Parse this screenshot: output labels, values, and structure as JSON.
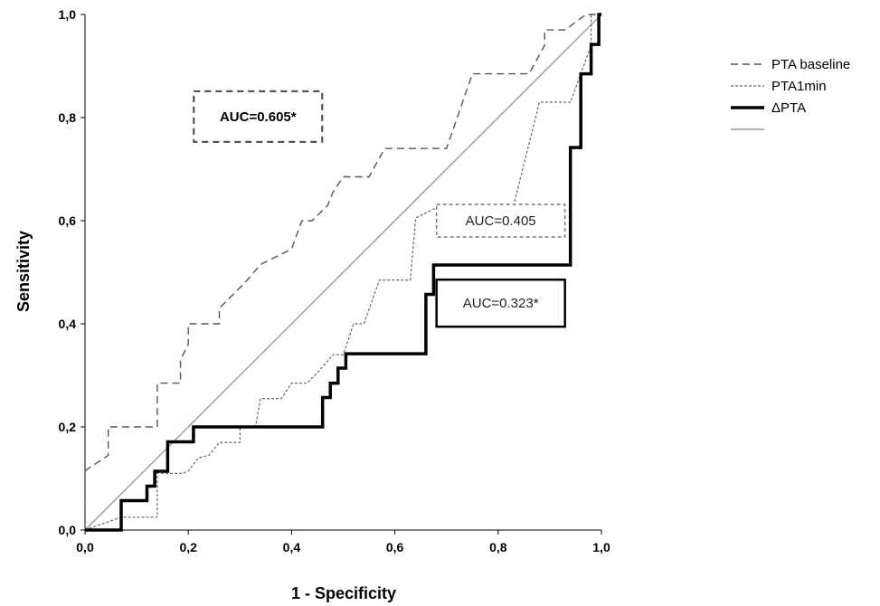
{
  "chart_data": {
    "type": "line",
    "title": "",
    "xlabel": "1 - Specificity",
    "ylabel": "Sensitivity",
    "xlim": [
      0,
      1
    ],
    "ylim": [
      0,
      1
    ],
    "x_ticks": [
      "0,0",
      "0,2",
      "0,4",
      "0,6",
      "0,8",
      "1,0"
    ],
    "y_ticks": [
      "0,0",
      "0,2",
      "0,4",
      "0,6",
      "0,8",
      "1,0"
    ],
    "grid": false,
    "legend_position": "top-right",
    "series": [
      {
        "name": "PTA baseline",
        "style": "dashed",
        "color": "#555555",
        "points": [
          [
            0,
            0
          ],
          [
            0,
            0.115
          ],
          [
            0.045,
            0.145
          ],
          [
            0.045,
            0.2
          ],
          [
            0.09,
            0.2
          ],
          [
            0.14,
            0.2
          ],
          [
            0.14,
            0.285
          ],
          [
            0.185,
            0.285
          ],
          [
            0.185,
            0.33
          ],
          [
            0.2,
            0.36
          ],
          [
            0.2,
            0.4
          ],
          [
            0.26,
            0.4
          ],
          [
            0.26,
            0.43
          ],
          [
            0.29,
            0.46
          ],
          [
            0.31,
            0.48
          ],
          [
            0.34,
            0.515
          ],
          [
            0.37,
            0.53
          ],
          [
            0.4,
            0.545
          ],
          [
            0.42,
            0.6
          ],
          [
            0.44,
            0.6
          ],
          [
            0.47,
            0.63
          ],
          [
            0.48,
            0.655
          ],
          [
            0.5,
            0.685
          ],
          [
            0.55,
            0.685
          ],
          [
            0.58,
            0.74
          ],
          [
            0.7,
            0.74
          ],
          [
            0.75,
            0.885
          ],
          [
            0.86,
            0.885
          ],
          [
            0.89,
            0.94
          ],
          [
            0.89,
            0.97
          ],
          [
            0.93,
            0.97
          ],
          [
            0.97,
            1.0
          ],
          [
            1.0,
            1.0
          ]
        ]
      },
      {
        "name": "PTA1min",
        "style": "dotted",
        "color": "#666666",
        "points": [
          [
            0,
            0
          ],
          [
            0.07,
            0.025
          ],
          [
            0.14,
            0.025
          ],
          [
            0.14,
            0.11
          ],
          [
            0.19,
            0.11
          ],
          [
            0.2,
            0.115
          ],
          [
            0.22,
            0.14
          ],
          [
            0.24,
            0.145
          ],
          [
            0.26,
            0.17
          ],
          [
            0.3,
            0.17
          ],
          [
            0.3,
            0.2
          ],
          [
            0.33,
            0.2
          ],
          [
            0.34,
            0.255
          ],
          [
            0.38,
            0.255
          ],
          [
            0.4,
            0.285
          ],
          [
            0.43,
            0.285
          ],
          [
            0.45,
            0.305
          ],
          [
            0.48,
            0.34
          ],
          [
            0.5,
            0.34
          ],
          [
            0.52,
            0.4
          ],
          [
            0.54,
            0.4
          ],
          [
            0.57,
            0.485
          ],
          [
            0.63,
            0.485
          ],
          [
            0.64,
            0.6
          ],
          [
            0.64,
            0.605
          ],
          [
            0.69,
            0.63
          ],
          [
            0.83,
            0.63
          ],
          [
            0.88,
            0.83
          ],
          [
            0.94,
            0.83
          ],
          [
            0.98,
            0.94
          ],
          [
            0.98,
            1.0
          ],
          [
            1.0,
            1.0
          ]
        ]
      },
      {
        "name": "ΔPTA",
        "style": "solid-thick",
        "color": "#000000",
        "points": [
          [
            0,
            0
          ],
          [
            0.07,
            0
          ],
          [
            0.07,
            0.057
          ],
          [
            0.12,
            0.057
          ],
          [
            0.12,
            0.085
          ],
          [
            0.135,
            0.085
          ],
          [
            0.135,
            0.114
          ],
          [
            0.16,
            0.114
          ],
          [
            0.16,
            0.171
          ],
          [
            0.21,
            0.171
          ],
          [
            0.21,
            0.2
          ],
          [
            0.46,
            0.2
          ],
          [
            0.46,
            0.257
          ],
          [
            0.475,
            0.257
          ],
          [
            0.475,
            0.285
          ],
          [
            0.49,
            0.285
          ],
          [
            0.49,
            0.314
          ],
          [
            0.505,
            0.314
          ],
          [
            0.505,
            0.342
          ],
          [
            0.525,
            0.342
          ],
          [
            0.525,
            0.342
          ],
          [
            0.66,
            0.342
          ],
          [
            0.66,
            0.457
          ],
          [
            0.675,
            0.457
          ],
          [
            0.675,
            0.514
          ],
          [
            0.94,
            0.514
          ],
          [
            0.94,
            0.742
          ],
          [
            0.96,
            0.742
          ],
          [
            0.96,
            0.885
          ],
          [
            0.98,
            0.885
          ],
          [
            0.98,
            0.942
          ],
          [
            0.995,
            0.942
          ],
          [
            0.995,
            1.0
          ],
          [
            1.0,
            1.0
          ]
        ]
      },
      {
        "name": "",
        "style": "reference",
        "color": "#999999",
        "points": [
          [
            0,
            0
          ],
          [
            1,
            1
          ]
        ]
      }
    ],
    "annotations": [
      {
        "text": "AUC=0.605*",
        "bold": true,
        "border": "dashed",
        "x": 0.335,
        "y": 0.802
      },
      {
        "text": "AUC=0.405",
        "bold": false,
        "border": "dotted",
        "x": 0.805,
        "y": 0.6
      },
      {
        "text": "AUC=0.323*",
        "bold": false,
        "border": "solid",
        "x": 0.805,
        "y": 0.44
      }
    ]
  }
}
